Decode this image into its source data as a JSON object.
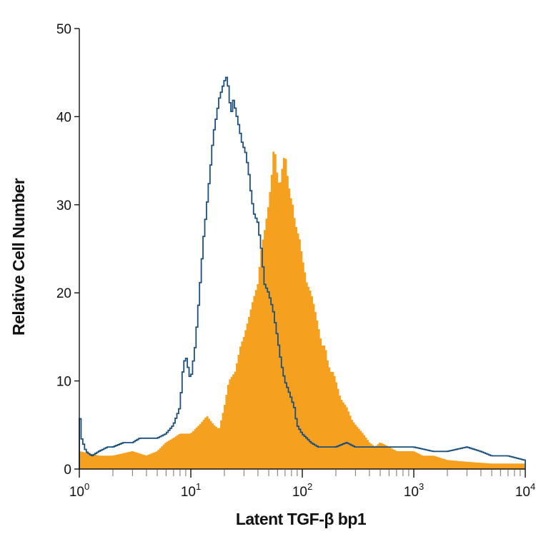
{
  "chart_data": {
    "type": "histogram",
    "xlabel": "Latent TGF-β bp1",
    "ylabel": "Relative Cell Number",
    "x_scale": "log",
    "xlim": [
      1,
      10000
    ],
    "ylim": [
      0,
      50
    ],
    "x_ticks": [
      {
        "value": 1,
        "base": "10",
        "exp": "0"
      },
      {
        "value": 10,
        "base": "10",
        "exp": "1"
      },
      {
        "value": 100,
        "base": "10",
        "exp": "2"
      },
      {
        "value": 1000,
        "base": "10",
        "exp": "3"
      },
      {
        "value": 10000,
        "base": "10",
        "exp": "4"
      }
    ],
    "y_ticks": [
      {
        "value": 0,
        "label": "0"
      },
      {
        "value": 10,
        "label": "10"
      },
      {
        "value": 20,
        "label": "20"
      },
      {
        "value": 30,
        "label": "30"
      },
      {
        "value": 40,
        "label": "40"
      },
      {
        "value": 50,
        "label": "50"
      }
    ],
    "grid": false,
    "legend": "none",
    "series": [
      {
        "style": "filled-step",
        "color": "#f5a01f",
        "points": [
          [
            1,
            2
          ],
          [
            1.5,
            1.5
          ],
          [
            2,
            1.5
          ],
          [
            3,
            2
          ],
          [
            4,
            1.5
          ],
          [
            5,
            2
          ],
          [
            6,
            3
          ],
          [
            7,
            3.5
          ],
          [
            8,
            4
          ],
          [
            9,
            4
          ],
          [
            10,
            4
          ],
          [
            12,
            5
          ],
          [
            14,
            6
          ],
          [
            16,
            5
          ],
          [
            18,
            4.5
          ],
          [
            20,
            7
          ],
          [
            22,
            10
          ],
          [
            25,
            11
          ],
          [
            28,
            14
          ],
          [
            30,
            15
          ],
          [
            33,
            17
          ],
          [
            36,
            19
          ],
          [
            40,
            21
          ],
          [
            43,
            25
          ],
          [
            46,
            27
          ],
          [
            50,
            30
          ],
          [
            53,
            33
          ],
          [
            56,
            37
          ],
          [
            60,
            33
          ],
          [
            63,
            32
          ],
          [
            66,
            34
          ],
          [
            70,
            36
          ],
          [
            74,
            33
          ],
          [
            78,
            31
          ],
          [
            82,
            30
          ],
          [
            86,
            28
          ],
          [
            90,
            27
          ],
          [
            95,
            26
          ],
          [
            100,
            24
          ],
          [
            110,
            21
          ],
          [
            120,
            20
          ],
          [
            130,
            18
          ],
          [
            140,
            16
          ],
          [
            150,
            14
          ],
          [
            160,
            14
          ],
          [
            170,
            12
          ],
          [
            180,
            11
          ],
          [
            190,
            11
          ],
          [
            200,
            10
          ],
          [
            220,
            8
          ],
          [
            250,
            7
          ],
          [
            280,
            5.5
          ],
          [
            300,
            5
          ],
          [
            350,
            4
          ],
          [
            400,
            3
          ],
          [
            450,
            2.5
          ],
          [
            500,
            3
          ],
          [
            600,
            2.5
          ],
          [
            700,
            2
          ],
          [
            800,
            2
          ],
          [
            1000,
            2
          ],
          [
            1200,
            1.5
          ],
          [
            1500,
            1.5
          ],
          [
            2000,
            1
          ],
          [
            3000,
            0.8
          ],
          [
            5000,
            0.6
          ],
          [
            10000,
            0.6
          ]
        ]
      },
      {
        "style": "step-line",
        "color": "#1c4f7c",
        "points": [
          [
            1,
            7
          ],
          [
            1.05,
            3.5
          ],
          [
            1.15,
            2
          ],
          [
            1.3,
            1.5
          ],
          [
            1.5,
            2
          ],
          [
            1.8,
            2.5
          ],
          [
            2,
            2.5
          ],
          [
            2.5,
            3
          ],
          [
            3,
            3
          ],
          [
            3.5,
            3.5
          ],
          [
            4,
            3.5
          ],
          [
            5,
            3.5
          ],
          [
            6,
            4
          ],
          [
            7,
            5
          ],
          [
            8,
            7
          ],
          [
            8.5,
            11
          ],
          [
            9,
            13
          ],
          [
            10,
            10
          ],
          [
            11,
            14
          ],
          [
            12,
            20
          ],
          [
            13,
            26
          ],
          [
            14,
            30
          ],
          [
            15,
            34
          ],
          [
            16,
            38
          ],
          [
            17,
            40
          ],
          [
            18,
            42
          ],
          [
            19,
            43
          ],
          [
            20,
            44
          ],
          [
            21,
            44.5
          ],
          [
            22,
            43
          ],
          [
            23,
            40
          ],
          [
            24,
            42
          ],
          [
            25,
            41
          ],
          [
            27,
            39
          ],
          [
            29,
            37
          ],
          [
            31,
            36
          ],
          [
            33,
            34
          ],
          [
            35,
            31
          ],
          [
            37,
            29
          ],
          [
            40,
            28
          ],
          [
            43,
            25
          ],
          [
            46,
            21
          ],
          [
            50,
            20
          ],
          [
            55,
            18
          ],
          [
            60,
            15
          ],
          [
            65,
            12
          ],
          [
            70,
            10
          ],
          [
            75,
            9
          ],
          [
            80,
            8
          ],
          [
            85,
            7
          ],
          [
            90,
            5
          ],
          [
            100,
            4
          ],
          [
            110,
            3.5
          ],
          [
            120,
            3
          ],
          [
            140,
            2.5
          ],
          [
            170,
            2.5
          ],
          [
            200,
            2.5
          ],
          [
            250,
            3
          ],
          [
            300,
            2.5
          ],
          [
            400,
            2.5
          ],
          [
            500,
            2.5
          ],
          [
            700,
            2.5
          ],
          [
            1000,
            2.5
          ],
          [
            1500,
            2
          ],
          [
            2000,
            2
          ],
          [
            3000,
            2.5
          ],
          [
            4000,
            2
          ],
          [
            5000,
            1.5
          ],
          [
            7000,
            1.5
          ],
          [
            10000,
            1
          ]
        ]
      }
    ]
  }
}
